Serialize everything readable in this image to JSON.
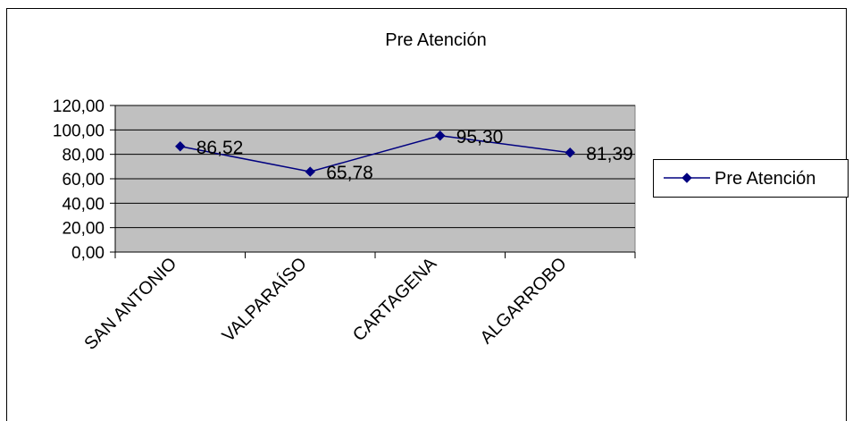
{
  "chart_data": {
    "type": "line",
    "title": "Pre Atención",
    "xlabel": "",
    "ylabel": "",
    "categories": [
      "SAN ANTONIO",
      "VALPARAÍSO",
      "CARTAGENA",
      "ALGARROBO"
    ],
    "series": [
      {
        "name": "Pre Atención",
        "values": [
          86.52,
          65.78,
          95.3,
          81.39
        ],
        "labels": [
          "86,52",
          "65,78",
          "95,30",
          "81,39"
        ],
        "color": "#000080",
        "marker": "diamond"
      }
    ],
    "ylim": [
      0,
      120
    ],
    "yticks": [
      0,
      20,
      40,
      60,
      80,
      100,
      120
    ],
    "ytick_labels": [
      "0,00",
      "20,00",
      "40,00",
      "60,00",
      "80,00",
      "100,00",
      "120,00"
    ],
    "grid": true,
    "plot_background": "#c0c0c0",
    "legend_position": "right"
  }
}
